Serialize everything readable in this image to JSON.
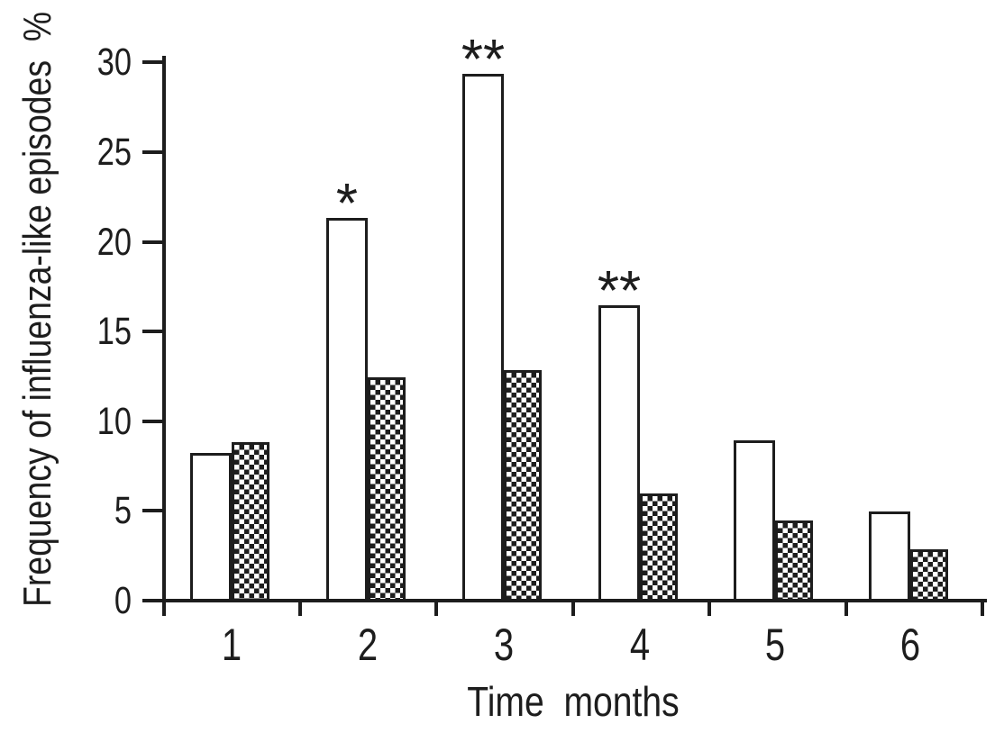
{
  "chart_data": {
    "type": "bar",
    "title": "",
    "xlabel": "Time  months",
    "ylabel": "Frequency of influenza-like episodes  %",
    "categories": [
      "1",
      "2",
      "3",
      "4",
      "5",
      "6"
    ],
    "series": [
      {
        "name": "open-bars",
        "pattern": "solid-white",
        "values": [
          8.3,
          21.4,
          29.4,
          16.5,
          9.0,
          5.0
        ]
      },
      {
        "name": "checkered-bars",
        "pattern": "checkerboard",
        "values": [
          8.9,
          12.5,
          12.9,
          6.0,
          4.5,
          2.9
        ]
      }
    ],
    "annotations": [
      {
        "category": "2",
        "series": 0,
        "text": "*"
      },
      {
        "category": "3",
        "series": 0,
        "text": "**"
      },
      {
        "category": "4",
        "series": 0,
        "text": "**"
      }
    ],
    "ylim": [
      0,
      30
    ],
    "yticks": [
      0,
      5,
      10,
      15,
      20,
      25,
      30
    ],
    "grid": false,
    "legend": "none",
    "colors": {
      "ink": "#1d1d1d",
      "background": "#ffffff"
    }
  }
}
